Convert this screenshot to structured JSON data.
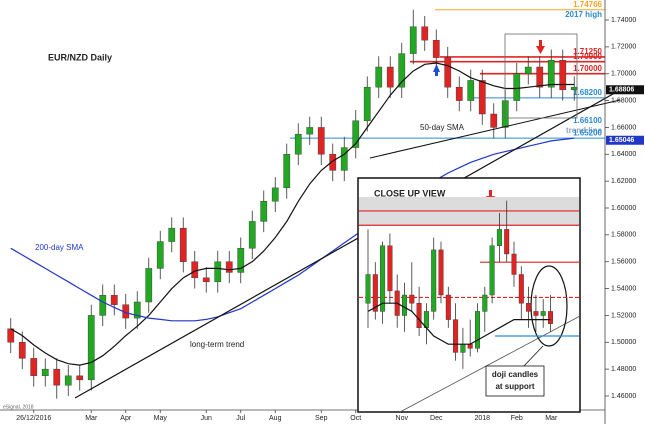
{
  "chart_data": [
    {
      "type": "candlestick",
      "title": "EUR/NZD Daily",
      "source": "eSignal, 2018",
      "categories": [
        null,
        null,
        "26/12/2016",
        null,
        null,
        null,
        null,
        "Mar",
        null,
        null,
        "Apr",
        null,
        null,
        "May",
        null,
        null,
        null,
        "Jun",
        null,
        null,
        "Jul",
        null,
        null,
        "Aug",
        null,
        null,
        null,
        "Sep",
        null,
        null,
        "Oct",
        null,
        null,
        null,
        "Nov",
        null,
        null,
        "Dec",
        null,
        null,
        null,
        "2018",
        null,
        null,
        "Feb",
        null,
        null,
        "Mar",
        null,
        null
      ],
      "open": [
        1.51,
        1.5,
        1.488,
        1.475,
        1.48,
        1.468,
        1.475,
        1.472,
        1.52,
        1.535,
        1.528,
        1.518,
        1.53,
        1.555,
        1.575,
        1.585,
        1.56,
        1.548,
        1.545,
        1.56,
        1.552,
        1.57,
        1.59,
        1.605,
        1.615,
        1.64,
        1.655,
        1.66,
        1.64,
        1.628,
        1.645,
        1.665,
        1.69,
        1.705,
        1.69,
        1.715,
        1.735,
        1.725,
        1.712,
        1.69,
        1.68,
        1.695,
        1.67,
        1.66,
        1.68,
        1.7,
        1.705,
        1.69,
        1.71,
        1.688
      ],
      "high": [
        1.518,
        1.508,
        1.496,
        1.488,
        1.488,
        1.483,
        1.483,
        1.528,
        1.543,
        1.543,
        1.536,
        1.538,
        1.563,
        1.583,
        1.593,
        1.593,
        1.568,
        1.556,
        1.568,
        1.568,
        1.578,
        1.598,
        1.613,
        1.623,
        1.648,
        1.663,
        1.668,
        1.668,
        1.648,
        1.653,
        1.673,
        1.698,
        1.713,
        1.713,
        1.723,
        1.7477,
        1.743,
        1.733,
        1.72,
        1.698,
        1.703,
        1.703,
        1.678,
        1.688,
        1.708,
        1.713,
        1.713,
        1.718,
        1.718,
        1.698
      ],
      "low": [
        1.492,
        1.48,
        1.467,
        1.467,
        1.458,
        1.46,
        1.464,
        1.464,
        1.512,
        1.52,
        1.51,
        1.51,
        1.522,
        1.547,
        1.567,
        1.552,
        1.54,
        1.537,
        1.537,
        1.544,
        1.544,
        1.562,
        1.582,
        1.597,
        1.607,
        1.632,
        1.647,
        1.632,
        1.62,
        1.62,
        1.637,
        1.657,
        1.682,
        1.682,
        1.682,
        1.707,
        1.717,
        1.704,
        1.682,
        1.672,
        1.672,
        1.662,
        1.652,
        1.652,
        1.672,
        1.692,
        1.682,
        1.682,
        1.68,
        1.68
      ],
      "close": [
        1.5,
        1.488,
        1.475,
        1.48,
        1.468,
        1.475,
        1.472,
        1.52,
        1.535,
        1.528,
        1.518,
        1.53,
        1.555,
        1.575,
        1.585,
        1.56,
        1.548,
        1.545,
        1.56,
        1.552,
        1.57,
        1.59,
        1.605,
        1.615,
        1.64,
        1.655,
        1.66,
        1.64,
        1.628,
        1.645,
        1.665,
        1.69,
        1.705,
        1.69,
        1.715,
        1.735,
        1.725,
        1.712,
        1.69,
        1.68,
        1.695,
        1.67,
        1.66,
        1.68,
        1.7,
        1.705,
        1.69,
        1.71,
        1.688,
        1.69
      ],
      "up_color": "#22a822",
      "down_color": "#e02424",
      "series": [
        {
          "name": "50-day SMA",
          "color": "#111111",
          "values": [
            1.51,
            1.505,
            1.498,
            1.492,
            1.487,
            1.484,
            1.483,
            1.485,
            1.49,
            1.497,
            1.505,
            1.512,
            1.52,
            1.53,
            1.54,
            1.548,
            1.553,
            1.555,
            1.555,
            1.554,
            1.555,
            1.56,
            1.568,
            1.578,
            1.59,
            1.605,
            1.618,
            1.628,
            1.635,
            1.64,
            1.648,
            1.66,
            1.672,
            1.684,
            1.694,
            1.702,
            1.707,
            1.708,
            1.706,
            1.702,
            1.697,
            1.694,
            1.691,
            1.689,
            1.689,
            1.69,
            1.691,
            1.692,
            1.692,
            1.692
          ]
        },
        {
          "name": "200-day SMA",
          "color": "#2236c8",
          "values": [
            1.57,
            1.565,
            1.56,
            1.555,
            1.55,
            1.545,
            1.54,
            1.535,
            1.53,
            1.526,
            1.522,
            1.52,
            1.518,
            1.517,
            1.516,
            1.516,
            1.516,
            1.517,
            1.519,
            1.522,
            1.525,
            1.53,
            1.535,
            1.54,
            1.545,
            1.55,
            1.556,
            1.562,
            1.568,
            1.574,
            1.58,
            1.586,
            1.592,
            1.598,
            1.604,
            1.61,
            1.616,
            1.621,
            1.626,
            1.63,
            1.634,
            1.637,
            1.64,
            1.642,
            1.644,
            1.646,
            1.648,
            1.65,
            1.651,
            1.652
          ]
        }
      ],
      "ylim": [
        1.45,
        1.75
      ],
      "yticks": [
        {
          "value": 1.46,
          "label": "1.46000"
        },
        {
          "value": 1.48,
          "label": "1.48000"
        },
        {
          "value": 1.5,
          "label": "1.50000"
        },
        {
          "value": 1.52,
          "label": "1.52000"
        },
        {
          "value": 1.54,
          "label": "1.54000"
        },
        {
          "value": 1.56,
          "label": "1.56000"
        },
        {
          "value": 1.58,
          "label": "1.58000"
        },
        {
          "value": 1.6,
          "label": "1.60000"
        },
        {
          "value": 1.62,
          "label": "1.62000"
        },
        {
          "value": 1.64,
          "label": "1.64000"
        },
        {
          "value": 1.66,
          "label": "1.66000"
        },
        {
          "value": 1.68,
          "label": "1.68000"
        },
        {
          "value": 1.7,
          "label": "1.70000"
        },
        {
          "value": 1.72,
          "label": "1.72000"
        },
        {
          "value": 1.74,
          "label": "1.74000"
        }
      ],
      "levels": [
        {
          "value": 1.74766,
          "label": "1.74766",
          "color": "#f5a623",
          "note": "2017 high"
        },
        {
          "value": 1.7125,
          "label": "1.71250",
          "color": "#e02424"
        },
        {
          "value": 1.709,
          "label": "1.70900",
          "color": "#e02424"
        },
        {
          "value": 1.7,
          "label": "1.70000",
          "color": "#e02424"
        },
        {
          "value": 1.682,
          "label": "1.68200",
          "color": "#2a8ad8"
        },
        {
          "value": 1.661,
          "label": "1.66100",
          "color": "#2a8ad8",
          "note": "trend line"
        },
        {
          "value": 1.652,
          "label": "1.65200",
          "color": "#2a8ad8"
        }
      ],
      "price_tags": [
        {
          "value": 1.68806,
          "label": "1.68806",
          "color": "#111111"
        },
        {
          "value": 1.65046,
          "label": "1.65046",
          "color": "#2236c8"
        }
      ],
      "annotations": [
        "long-term trend"
      ]
    },
    {
      "type": "candlestick",
      "title": "CLOSE UP VIEW",
      "open": [
        1.69,
        1.697,
        1.688,
        1.704,
        1.693,
        1.687,
        1.692,
        1.69,
        1.684,
        1.688,
        1.703,
        1.692,
        1.686,
        1.678,
        1.68,
        1.679,
        1.688,
        1.692,
        1.704,
        1.708,
        1.702,
        1.697,
        1.69,
        1.688,
        1.687,
        1.688
      ],
      "high": [
        1.708,
        1.7,
        1.705,
        1.707,
        1.697,
        1.695,
        1.7,
        1.694,
        1.69,
        1.706,
        1.705,
        1.694,
        1.69,
        1.684,
        1.686,
        1.69,
        1.694,
        1.706,
        1.712,
        1.715,
        1.705,
        1.699,
        1.694,
        1.692,
        1.691,
        1.692
      ],
      "low": [
        1.684,
        1.686,
        1.685,
        1.69,
        1.684,
        1.683,
        1.688,
        1.682,
        1.68,
        1.686,
        1.69,
        1.684,
        1.676,
        1.674,
        1.677,
        1.678,
        1.683,
        1.69,
        1.7,
        1.7,
        1.694,
        1.686,
        1.684,
        1.683,
        1.684,
        1.683
      ],
      "close": [
        1.697,
        1.688,
        1.704,
        1.693,
        1.687,
        1.692,
        1.69,
        1.684,
        1.688,
        1.703,
        1.692,
        1.686,
        1.678,
        1.68,
        1.679,
        1.688,
        1.692,
        1.704,
        1.708,
        1.702,
        1.697,
        1.69,
        1.688,
        1.687,
        1.688,
        1.685
      ],
      "sma": [
        1.688,
        1.689,
        1.69,
        1.69,
        1.69,
        1.689,
        1.688,
        1.686,
        1.684,
        1.682,
        1.681,
        1.68,
        1.68,
        1.68,
        1.68,
        1.681,
        1.682,
        1.683,
        1.684,
        1.685,
        1.686,
        1.686,
        1.686,
        1.686,
        1.686,
        1.686
      ],
      "ylim": [
        1.6664,
        1.7176
      ],
      "levels": [
        {
          "value": 1.7125,
          "color": "#e02424"
        },
        {
          "value": 1.709,
          "color": "#e02424"
        },
        {
          "value": 1.7,
          "color": "#e02424"
        },
        {
          "value": 1.6914,
          "color": "#e02424",
          "dashed": true
        },
        {
          "value": 1.682,
          "color": "#2a8ad8"
        }
      ],
      "annotations": [
        "doji candles",
        "at support"
      ]
    }
  ]
}
